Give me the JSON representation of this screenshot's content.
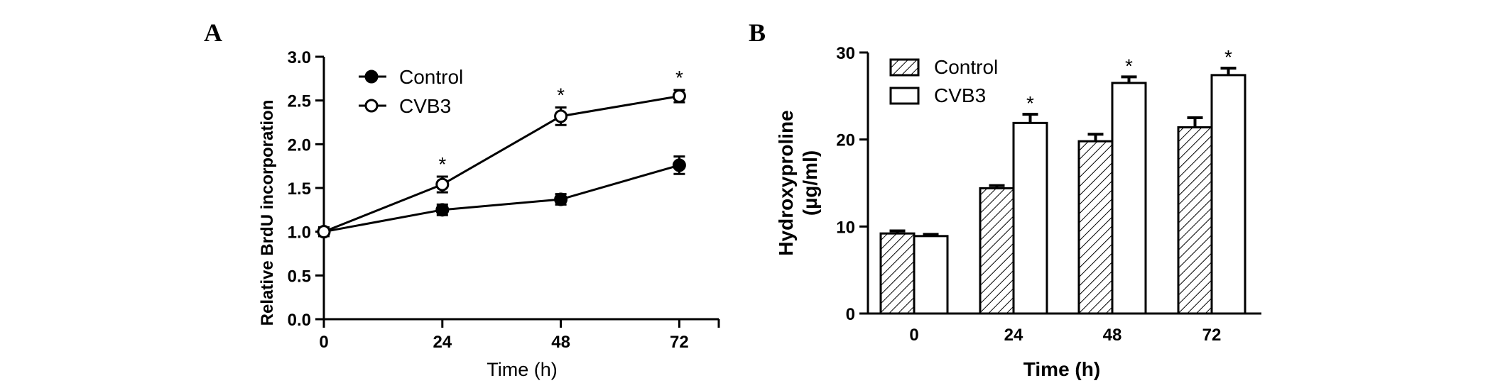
{
  "panels": {
    "a": {
      "label": "A"
    },
    "b": {
      "label": "B"
    }
  },
  "chart_data": [
    {
      "type": "line",
      "xlabel": "Time (h)",
      "ylabel": "Relative BrdU incorporation",
      "x": [
        0,
        24,
        48,
        72
      ],
      "x_ticks": [
        "0",
        "24",
        "48",
        "72"
      ],
      "xlim": [
        0,
        80
      ],
      "ylim": [
        0,
        3
      ],
      "y_ticks": [
        "0.0",
        "0.5",
        "1.0",
        "1.5",
        "2.0",
        "2.5",
        "3.0"
      ],
      "legend_position": "top-left",
      "series": [
        {
          "name": "Control",
          "marker": "filled-circle",
          "values": [
            1.0,
            1.25,
            1.37,
            1.76
          ],
          "errors": [
            0.05,
            0.06,
            0.06,
            0.1
          ]
        },
        {
          "name": "CVB3",
          "marker": "open-circle",
          "values": [
            1.0,
            1.54,
            2.32,
            2.55
          ],
          "errors": [
            0.05,
            0.09,
            0.1,
            0.07
          ]
        }
      ],
      "annotations": [
        {
          "text": "*",
          "x": 24
        },
        {
          "text": "*",
          "x": 48
        },
        {
          "text": "*",
          "x": 72
        }
      ]
    },
    {
      "type": "bar",
      "xlabel": "Time (h)",
      "ylabel": "Hydroxyproline (µg/ml)",
      "categories": [
        "0",
        "24",
        "48",
        "72"
      ],
      "ylim": [
        0,
        30
      ],
      "y_ticks": [
        "0",
        "10",
        "20",
        "30"
      ],
      "legend_position": "top-left",
      "series": [
        {
          "name": "Control",
          "pattern": "hatched",
          "values": [
            9.2,
            14.4,
            19.8,
            21.4
          ],
          "errors": [
            0.3,
            0.3,
            0.8,
            1.1
          ]
        },
        {
          "name": "CVB3",
          "pattern": "open",
          "values": [
            8.9,
            21.9,
            26.5,
            27.4
          ],
          "errors": [
            0.2,
            1.0,
            0.7,
            0.8
          ]
        }
      ],
      "annotations": [
        {
          "text": "*",
          "category": "24"
        },
        {
          "text": "*",
          "category": "48"
        },
        {
          "text": "*",
          "category": "72"
        }
      ]
    }
  ]
}
